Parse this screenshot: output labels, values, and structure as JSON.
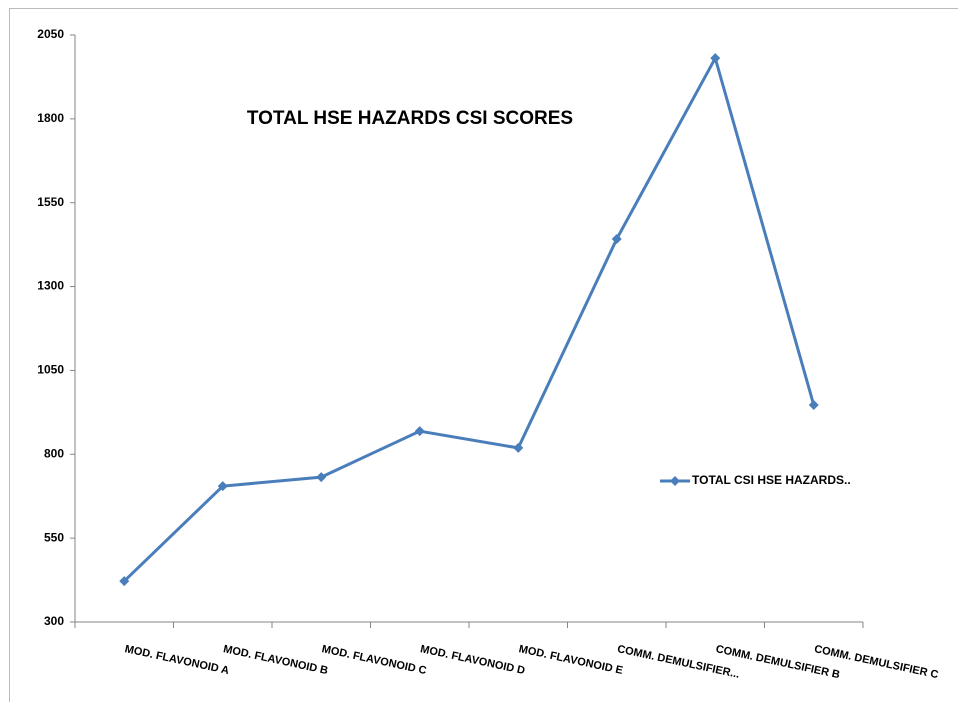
{
  "chart_data": {
    "type": "line",
    "title": "TOTAL HSE HAZARDS  CSI SCORES",
    "categories": [
      "MOD. FLAVONOID A",
      "MOD. FLAVONOID B",
      "MOD. FLAVONOID C",
      "MOD. FLAVONOID D",
      "MOD. FLAVONOID E",
      "COMM. DEMULSIFIER...",
      "COMM. DEMULSIFIER B",
      "COMM. DEMULSIFIER C"
    ],
    "series": [
      {
        "name": "TOTAL CSI  HSE HAZARDS..",
        "color": "#4a7ebb",
        "values": [
          422,
          705,
          732,
          869,
          819,
          1442,
          1981,
          947
        ]
      }
    ],
    "ylim": [
      300,
      2050
    ],
    "yticks": [
      300,
      550,
      800,
      1050,
      1300,
      1550,
      1800,
      2050
    ],
    "grid": false,
    "legend": "right"
  }
}
